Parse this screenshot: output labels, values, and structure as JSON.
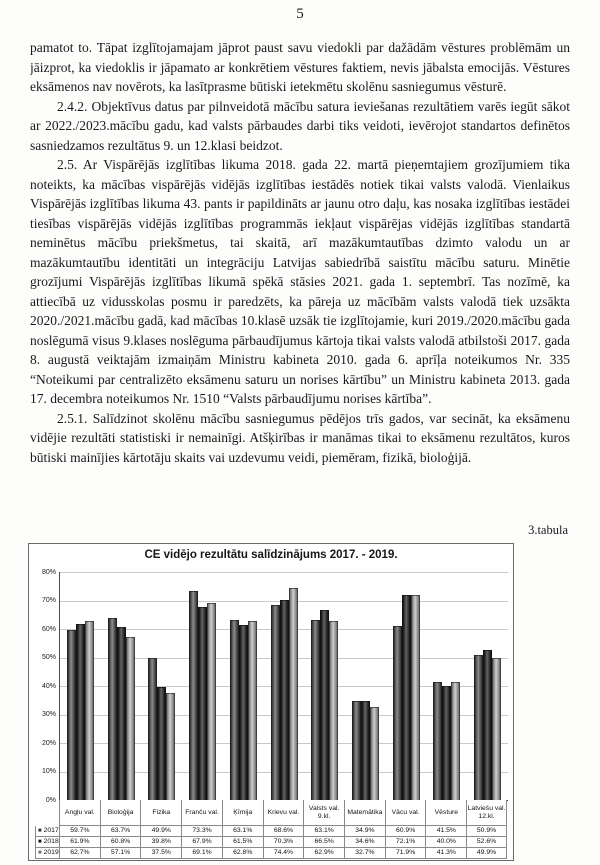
{
  "page": {
    "number": "5"
  },
  "paragraphs": [
    {
      "indent": false,
      "text": "pamatot to. Tāpat izglītojamajam jāprot paust savu viedokli par dažādām vēstures problēmām un jāizprot, ka viedoklis ir jāpamato ar konkrētiem vēstures faktiem, nevis jābalsta emocijās. Vēstures eksāmenos nav novērots, ka lasītprasme būtiski ietekmētu skolēnu sasniegumus vēsturē."
    },
    {
      "indent": true,
      "text": "2.4.2. Objektīvus datus par pilnveidotā mācību satura ieviešanas rezultātiem varēs iegūt sākot ar 2022./2023.mācību gadu, kad valsts pārbaudes darbi tiks veidoti, ievērojot standartos definētos sasniedzamos rezultātus 9. un 12.klasi beidzot."
    },
    {
      "indent": true,
      "text": "2.5. Ar Vispārējās izglītības likuma 2018. gada 22. martā pieņemtajiem grozījumiem tika noteikts, ka mācības vispārējās vidējās izglītības iestādēs notiek tikai valsts valodā. Vienlaikus Vispārējās izglītības likuma 43. pants ir papildināts ar jaunu otro daļu, kas nosaka izglītības iestādei tiesības vispārējās vidējās izglītības programmās iekļaut vispārējas vidējās izglītības standartā neminētus mācību priekšmetus, tai skaitā, arī mazākumtautības dzimto valodu un ar mazākumtautību identitāti un integrāciju Latvijas sabiedrībā saistītu mācību saturu. Minētie grozījumi Vispārējās izglītības likumā spēkā stāsies 2021. gada 1. septembrī. Tas nozīmē, ka attiecībā uz vidusskolas posmu ir paredzēts, ka pāreja uz mācībām valsts valodā tiek uzsākta 2020./2021.mācību gadā, kad mācības 10.klasē uzsāk tie izglītojamie, kuri 2019./2020.mācību gada noslēgumā visus 9.klases noslēguma pārbaudījumus kārtoja tikai valsts valodā atbilstoši 2017. gada 8. augustā veiktajām izmaiņām Ministru kabineta 2010. gada 6. aprīļa noteikumos Nr. 335 “Noteikumi par centralizēto eksāmenu saturu un norises kārtību” un Ministru kabineta 2013. gada 17. decembra noteikumos Nr. 1510 “Valsts pārbaudījumu norises kārtība”."
    },
    {
      "indent": true,
      "text": "2.5.1. Salīdzinot skolēnu mācību sasniegumus pēdējos trīs gados, var secināt, ka eksāmenu vidējie rezultāti statistiski ir nemainīgi. Atšķirības ir manāmas tikai to eksāmenu rezultātos, kuros būtiski mainījies kārtotāju skaits vai uzdevumu veidi, piemēram, fizikā, bioloģijā."
    }
  ],
  "caption": "3.tabula",
  "legend_marker": "■",
  "chart_data": {
    "type": "bar",
    "title": "CE vidējo rezultātu salīdzinājums 2017. - 2019.",
    "xlabel": "",
    "ylabel": "",
    "ylim": [
      0,
      80
    ],
    "yticks": [
      "0%",
      "10%",
      "20%",
      "30%",
      "40%",
      "50%",
      "60%",
      "70%",
      "80%"
    ],
    "grid": true,
    "legend_position": "table-left",
    "categories": [
      "Angļu val.",
      "Bioloģija",
      "Fizika",
      "Franču val.",
      "Ķīmija",
      "Krievu val.",
      "Valsts val.\n9.kl.",
      "Matemātika",
      "Vācu val.",
      "Vēsture",
      "Latviešu val.\n12.kl."
    ],
    "series": [
      {
        "name": "2017",
        "color_edge": "#2f2f2f",
        "color_center": "#8c8c8c",
        "values": [
          59.7,
          63.7,
          49.9,
          73.3,
          63.1,
          68.6,
          63.1,
          34.9,
          60.9,
          41.5,
          50.9
        ]
      },
      {
        "name": "2018",
        "color_edge": "#121212",
        "color_center": "#646464",
        "values": [
          61.9,
          60.8,
          39.8,
          67.9,
          61.5,
          70.3,
          66.5,
          34.6,
          72.1,
          40.0,
          52.6
        ]
      },
      {
        "name": "2019",
        "color_edge": "#6f6f6f",
        "color_center": "#cfcfcf",
        "values": [
          62.7,
          57.1,
          37.5,
          69.1,
          62.8,
          74.4,
          62.9,
          32.7,
          71.9,
          41.3,
          49.9
        ]
      }
    ]
  }
}
